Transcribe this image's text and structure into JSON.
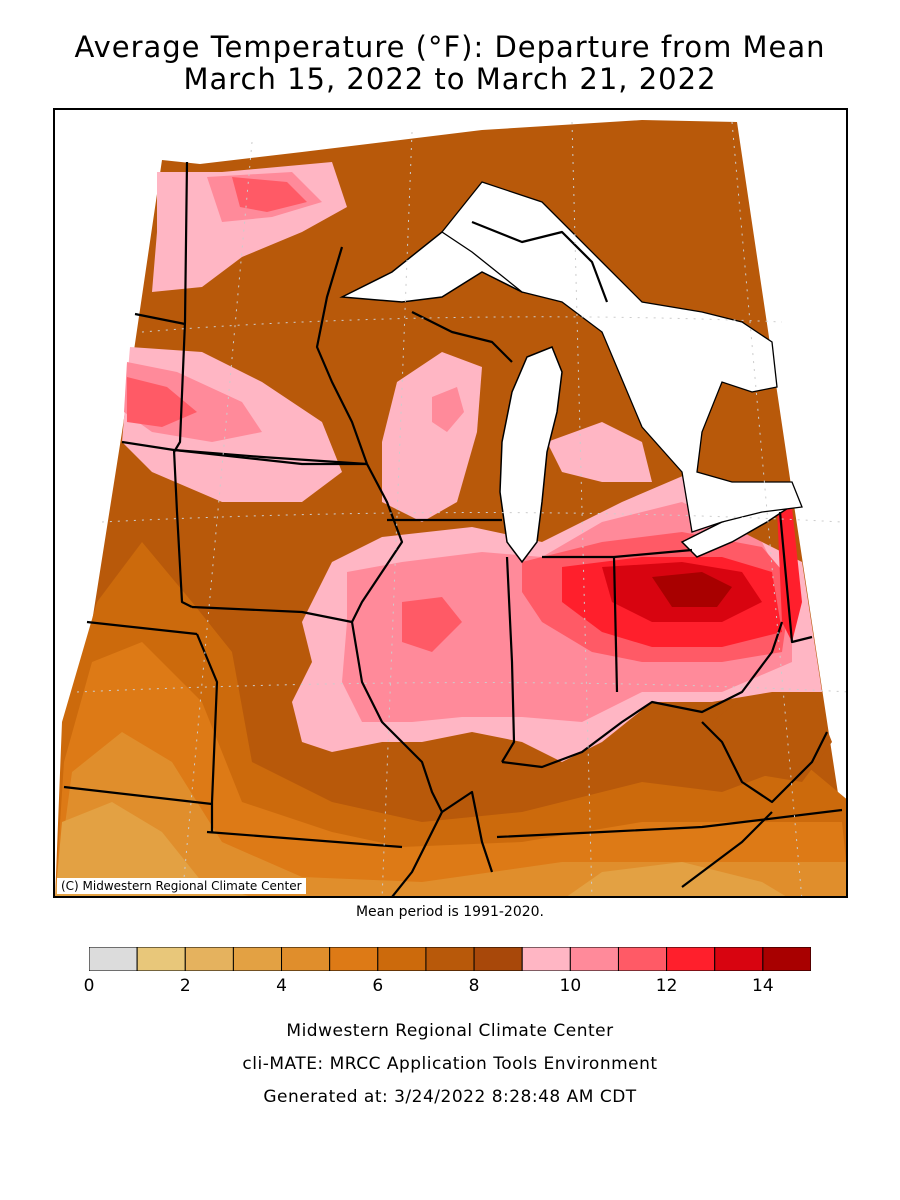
{
  "title_line1": "Average Temperature (°F): Departure from Mean",
  "title_line2": "March 15, 2022 to March 21, 2022",
  "copyright": "(C) Midwestern Regional Climate Center",
  "mean_period": "Mean period is 1991-2020.",
  "legend": {
    "bins": [
      {
        "min": 0,
        "max": 1,
        "color": "#dcdcdc"
      },
      {
        "min": 1,
        "max": 2,
        "color": "#e8c77a"
      },
      {
        "min": 2,
        "max": 3,
        "color": "#e5b25e"
      },
      {
        "min": 3,
        "max": 4,
        "color": "#e3a143"
      },
      {
        "min": 4,
        "max": 5,
        "color": "#e08e2c"
      },
      {
        "min": 5,
        "max": 6,
        "color": "#dd7a16"
      },
      {
        "min": 6,
        "max": 7,
        "color": "#cc6a0c"
      },
      {
        "min": 7,
        "max": 8,
        "color": "#b8590a"
      },
      {
        "min": 8,
        "max": 9,
        "color": "#a8480a"
      },
      {
        "min": 9,
        "max": 10,
        "color": "#ffb6c4"
      },
      {
        "min": 10,
        "max": 11,
        "color": "#ff8a9a"
      },
      {
        "min": 11,
        "max": 12,
        "color": "#ff5a66"
      },
      {
        "min": 12,
        "max": 13,
        "color": "#ff1f2c"
      },
      {
        "min": 13,
        "max": 14,
        "color": "#d80410"
      },
      {
        "min": 14,
        "max": 15,
        "color": "#a80000"
      }
    ],
    "tick_labels": [
      "0",
      "2",
      "4",
      "6",
      "8",
      "10",
      "12",
      "14"
    ]
  },
  "footer_line1": "Midwestern Regional Climate Center",
  "footer_line2": "cli-MATE: MRCC Application Tools Environment",
  "footer_line3": "Generated at: 3/24/2022 8:28:48 AM CDT"
}
